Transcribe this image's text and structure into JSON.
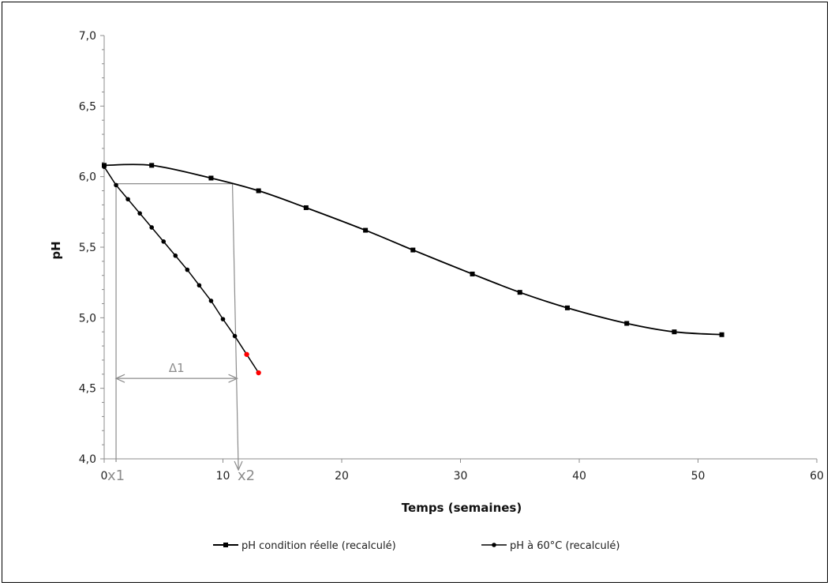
{
  "chart_data": {
    "type": "line",
    "title": "",
    "xlabel": "Temps (semaines)",
    "ylabel": "pH",
    "xlim": [
      0,
      60
    ],
    "ylim": [
      4.0,
      7.0
    ],
    "x_ticks": [
      0,
      10,
      20,
      30,
      40,
      50,
      60
    ],
    "y_ticks": [
      4.0,
      4.5,
      5.0,
      5.5,
      6.0,
      6.5,
      7.0
    ],
    "x_tick_labels": [
      "0",
      "10",
      "20",
      "30",
      "40",
      "50",
      "60"
    ],
    "y_tick_labels": [
      "4,0",
      "4,5",
      "5,0",
      "5,5",
      "6,0",
      "6,5",
      "7,0"
    ],
    "grid": false,
    "legend_position": "bottom",
    "series": [
      {
        "name": "pH condition réelle (recalculé)",
        "marker": "square",
        "color": "#000000",
        "x": [
          0,
          4,
          9,
          13,
          17,
          22,
          26,
          31,
          35,
          39,
          44,
          48,
          52
        ],
        "y": [
          6.08,
          6.08,
          5.99,
          5.9,
          5.78,
          5.62,
          5.48,
          5.31,
          5.18,
          5.07,
          4.96,
          4.9,
          4.88
        ]
      },
      {
        "name": "pH à 60°C (recalculé)",
        "marker": "circle",
        "color": "#000000",
        "x": [
          0,
          1,
          2,
          3,
          4,
          5,
          6,
          7,
          8,
          9,
          10,
          11,
          12,
          13
        ],
        "y": [
          6.07,
          5.94,
          5.84,
          5.74,
          5.64,
          5.54,
          5.44,
          5.34,
          5.23,
          5.12,
          4.99,
          4.87,
          4.74,
          4.61
        ],
        "highlighted_points": [
          12,
          13
        ],
        "highlight_color": "#ff0000"
      }
    ],
    "annotations": {
      "x1_label": "x1",
      "x2_label": "x2",
      "delta_label": "Δ1",
      "x1": 1,
      "x2": 11.3,
      "y_level": 5.95,
      "delta_y": 4.57,
      "color": "#8c8c8c"
    }
  }
}
